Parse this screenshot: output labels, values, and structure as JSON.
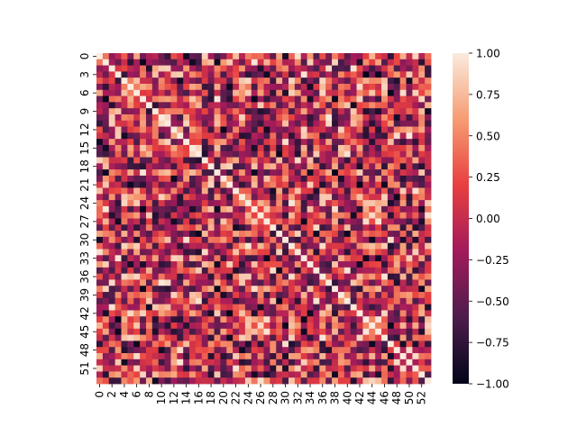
{
  "chart_data": {
    "type": "heatmap",
    "n": 54,
    "row_tick_labels": [
      "0",
      "3",
      "6",
      "9",
      "12",
      "15",
      "18",
      "21",
      "24",
      "27",
      "30",
      "33",
      "36",
      "39",
      "42",
      "45",
      "48",
      "51"
    ],
    "col_tick_labels": [
      "0",
      "2",
      "4",
      "6",
      "8",
      "10",
      "12",
      "14",
      "16",
      "18",
      "20",
      "22",
      "24",
      "26",
      "28",
      "30",
      "32",
      "34",
      "36",
      "38",
      "40",
      "42",
      "44",
      "46",
      "48",
      "50",
      "52"
    ],
    "row_tick_step": 3,
    "col_tick_step": 2,
    "vmin": -1.0,
    "vmax": 1.0,
    "diagonal": 1.0,
    "colorbar_ticks": [
      "1.00",
      "0.75",
      "0.50",
      "0.25",
      "0.00",
      "−0.25",
      "−0.50",
      "−0.75",
      "−1.00"
    ],
    "colorbar_values": [
      1.0,
      0.75,
      0.5,
      0.25,
      0.0,
      -0.25,
      -0.5,
      -0.75,
      -1.0
    ],
    "colormap": "rocket",
    "colormap_stops": [
      "#03051a",
      "#4c1d4b",
      "#a11a5b",
      "#e83f3f",
      "#f69c73",
      "#faebdd"
    ]
  }
}
